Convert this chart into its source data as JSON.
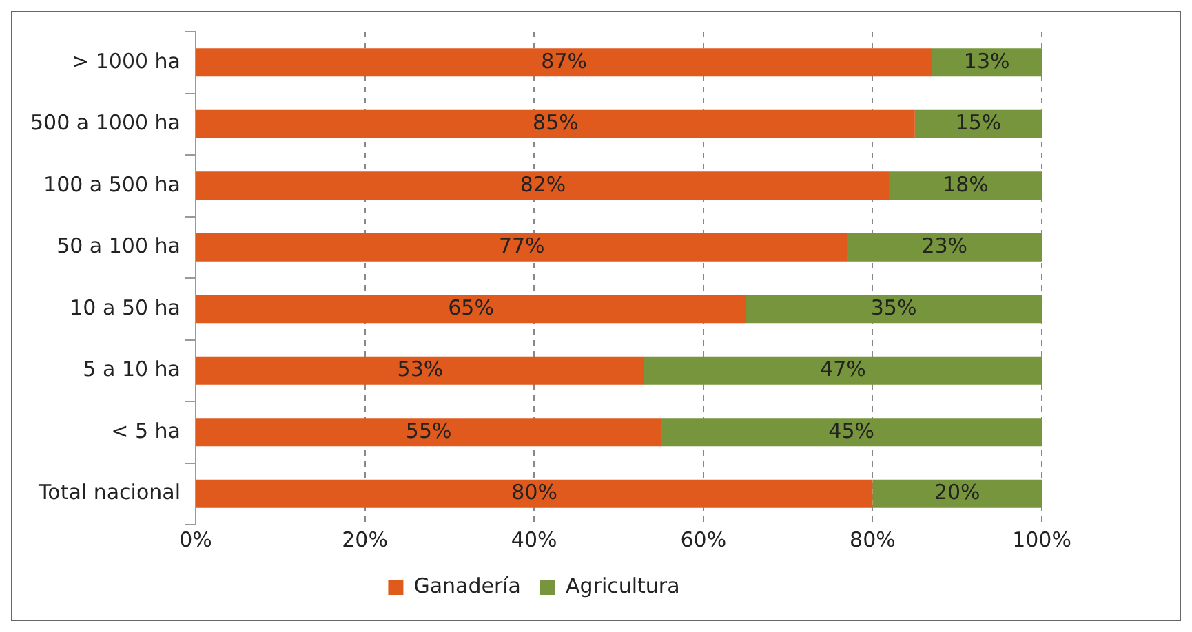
{
  "chart_data": {
    "type": "bar",
    "orientation": "horizontal",
    "stacked": true,
    "categories": [
      "> 1000 ha",
      "500 a 1000 ha",
      "100 a 500 ha",
      "50 a 100 ha",
      "10 a 50 ha",
      "5 a 10 ha",
      "< 5 ha",
      "Total nacional"
    ],
    "series": [
      {
        "name": "Ganadería",
        "color": "#e05a1e",
        "values": [
          87,
          85,
          82,
          77,
          65,
          53,
          55,
          80
        ],
        "value_labels": [
          "87%",
          "85%",
          "82%",
          "77%",
          "65%",
          "53%",
          "55%",
          "80%"
        ]
      },
      {
        "name": "Agricultura",
        "color": "#77953c",
        "values": [
          13,
          15,
          18,
          23,
          35,
          47,
          45,
          20
        ],
        "value_labels": [
          "13%",
          "15%",
          "18%",
          "23%",
          "35%",
          "47%",
          "45%",
          "20%"
        ]
      }
    ],
    "xlim": [
      0,
      100
    ],
    "xticks": [
      {
        "value": 0,
        "label": "0%"
      },
      {
        "value": 20,
        "label": "20%"
      },
      {
        "value": 40,
        "label": "40%"
      },
      {
        "value": 60,
        "label": "60%"
      },
      {
        "value": 80,
        "label": "80%"
      },
      {
        "value": 100,
        "label": "100%"
      }
    ],
    "grid": "x",
    "line_style": "dashed",
    "legend": "bottom"
  }
}
